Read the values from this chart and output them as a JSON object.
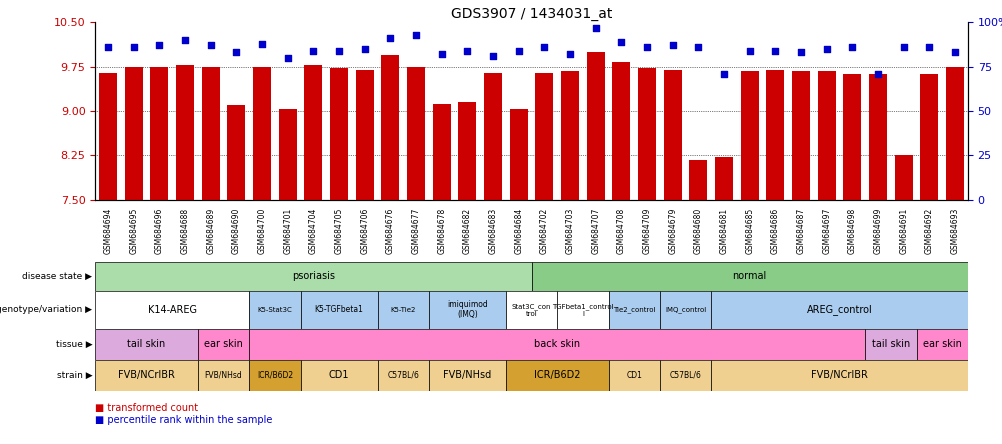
{
  "title": "GDS3907 / 1434031_at",
  "samples": [
    "GSM684694",
    "GSM684695",
    "GSM684696",
    "GSM684688",
    "GSM684689",
    "GSM684690",
    "GSM684700",
    "GSM684701",
    "GSM684704",
    "GSM684705",
    "GSM684706",
    "GSM684676",
    "GSM684677",
    "GSM684678",
    "GSM684682",
    "GSM684683",
    "GSM684684",
    "GSM684702",
    "GSM684703",
    "GSM684707",
    "GSM684708",
    "GSM684709",
    "GSM684679",
    "GSM684680",
    "GSM684681",
    "GSM684685",
    "GSM684686",
    "GSM684687",
    "GSM684697",
    "GSM684698",
    "GSM684699",
    "GSM684691",
    "GSM684692",
    "GSM684693"
  ],
  "transformed_count": [
    9.65,
    9.75,
    9.75,
    9.78,
    9.75,
    9.1,
    9.75,
    9.04,
    9.78,
    9.73,
    9.7,
    9.94,
    9.75,
    9.12,
    9.15,
    9.65,
    9.04,
    9.65,
    9.68,
    10.0,
    9.82,
    9.72,
    9.69,
    8.18,
    8.22,
    9.68,
    9.7,
    9.68,
    9.68,
    9.62,
    9.62,
    8.25,
    9.63,
    9.75
  ],
  "percentile_rank": [
    86,
    86,
    87,
    90,
    87,
    83,
    88,
    80,
    84,
    84,
    85,
    91,
    93,
    82,
    84,
    81,
    84,
    86,
    82,
    97,
    89,
    86,
    87,
    86,
    71,
    84,
    84,
    83,
    85,
    86,
    71,
    86,
    86,
    83
  ],
  "ylim_left": [
    7.5,
    10.5
  ],
  "ylim_right": [
    0,
    100
  ],
  "yticks_left": [
    7.5,
    8.25,
    9.0,
    9.75,
    10.5
  ],
  "yticks_right": [
    0,
    25,
    50,
    75,
    100
  ],
  "bar_color": "#cc0000",
  "dot_color": "#0000cc",
  "annotation_rows": [
    {
      "label": "disease state",
      "segments": [
        {
          "text": "psoriasis",
          "start": 0,
          "end": 17,
          "color": "#aaddaa"
        },
        {
          "text": "normal",
          "start": 17,
          "end": 34,
          "color": "#88cc88"
        }
      ]
    },
    {
      "label": "genotype/variation",
      "segments": [
        {
          "text": "K14-AREG",
          "start": 0,
          "end": 6,
          "color": "#ffffff"
        },
        {
          "text": "K5-Stat3C",
          "start": 6,
          "end": 8,
          "color": "#aaccee"
        },
        {
          "text": "K5-TGFbeta1",
          "start": 8,
          "end": 11,
          "color": "#aaccee"
        },
        {
          "text": "K5-Tie2",
          "start": 11,
          "end": 13,
          "color": "#aaccee"
        },
        {
          "text": "imiquimod\n(IMQ)",
          "start": 13,
          "end": 16,
          "color": "#aaccee"
        },
        {
          "text": "Stat3C_con\ntrol",
          "start": 16,
          "end": 18,
          "color": "#ffffff"
        },
        {
          "text": "TGFbeta1_control\nl",
          "start": 18,
          "end": 20,
          "color": "#ffffff"
        },
        {
          "text": "Tie2_control",
          "start": 20,
          "end": 22,
          "color": "#aaccee"
        },
        {
          "text": "IMQ_control",
          "start": 22,
          "end": 24,
          "color": "#aaccee"
        },
        {
          "text": "AREG_control",
          "start": 24,
          "end": 34,
          "color": "#aaccee"
        }
      ]
    },
    {
      "label": "tissue",
      "segments": [
        {
          "text": "tail skin",
          "start": 0,
          "end": 4,
          "color": "#ddaadd"
        },
        {
          "text": "ear skin",
          "start": 4,
          "end": 6,
          "color": "#ff88cc"
        },
        {
          "text": "back skin",
          "start": 6,
          "end": 30,
          "color": "#ff88cc"
        },
        {
          "text": "tail skin",
          "start": 30,
          "end": 32,
          "color": "#ddaadd"
        },
        {
          "text": "ear skin",
          "start": 32,
          "end": 34,
          "color": "#ff88cc"
        }
      ]
    },
    {
      "label": "strain",
      "segments": [
        {
          "text": "FVB/NCrIBR",
          "start": 0,
          "end": 4,
          "color": "#f0d090"
        },
        {
          "text": "FVB/NHsd",
          "start": 4,
          "end": 6,
          "color": "#f0d090"
        },
        {
          "text": "ICR/B6D2",
          "start": 6,
          "end": 8,
          "color": "#d4a030"
        },
        {
          "text": "CD1",
          "start": 8,
          "end": 11,
          "color": "#f0d090"
        },
        {
          "text": "C57BL/6",
          "start": 11,
          "end": 13,
          "color": "#f0d090"
        },
        {
          "text": "FVB/NHsd",
          "start": 13,
          "end": 16,
          "color": "#f0d090"
        },
        {
          "text": "ICR/B6D2",
          "start": 16,
          "end": 20,
          "color": "#d4a030"
        },
        {
          "text": "CD1",
          "start": 20,
          "end": 22,
          "color": "#f0d090"
        },
        {
          "text": "C57BL/6",
          "start": 22,
          "end": 24,
          "color": "#f0d090"
        },
        {
          "text": "FVB/NCrIBR",
          "start": 24,
          "end": 34,
          "color": "#f0d090"
        }
      ]
    }
  ],
  "legend": [
    {
      "label": "transformed count",
      "color": "#cc0000"
    },
    {
      "label": "percentile rank within the sample",
      "color": "#0000cc"
    }
  ]
}
